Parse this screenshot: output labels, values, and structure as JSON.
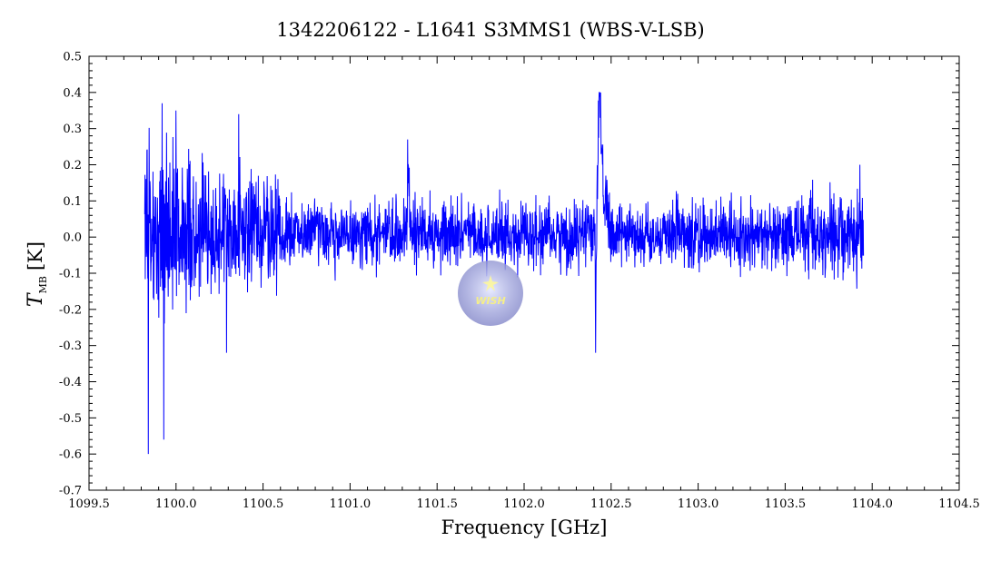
{
  "chart_data": {
    "type": "line",
    "title": "1342206122 - L1641 S3MMS1 (WBS-V-LSB)",
    "xlabel": "Frequency [GHz]",
    "ylabel_main": "T",
    "ylabel_sub": "MB",
    "ylabel_unit": "[K]",
    "xlim": [
      1099.5,
      1104.5
    ],
    "ylim": [
      -0.7,
      0.5
    ],
    "xticks": [
      1099.5,
      1100.0,
      1100.5,
      1101.0,
      1101.5,
      1102.0,
      1102.5,
      1103.0,
      1103.5,
      1104.0,
      1104.5
    ],
    "xtick_labels": [
      "1099.5",
      "1100.0",
      "1100.5",
      "1101.0",
      "1101.5",
      "1102.0",
      "1102.5",
      "1103.0",
      "1103.5",
      "1104.0",
      "1104.5"
    ],
    "yticks": [
      0.5,
      0.4,
      0.3,
      0.2,
      0.1,
      0.0,
      -0.1,
      -0.2,
      -0.3,
      -0.4,
      -0.5,
      -0.6,
      -0.7
    ],
    "ytick_labels": [
      "0.5",
      "0.4",
      "0.3",
      "0.2",
      "0.1",
      "0.0",
      "-0.1",
      "-0.2",
      "-0.3",
      "-0.4",
      "-0.5",
      "-0.6",
      "-0.7"
    ],
    "grid": false,
    "series": [
      {
        "color": "#0000ff",
        "x_range": [
          1099.82,
          1103.95
        ],
        "notes_visible_features": "noise spectrum; emission peak ~0.38 K near 1102.43 GHz; absorption dip ~-0.32 K near 1102.41 GHz; peak ~0.27 K near 1101.33 GHz; strong negative spikes to ~-0.6 K near 1099.84 GHz",
        "features": [
          {
            "x": 1099.84,
            "y": -0.6
          },
          {
            "x": 1099.93,
            "y": -0.56
          },
          {
            "x": 1099.92,
            "y": 0.37
          },
          {
            "x": 1100.0,
            "y": 0.35
          },
          {
            "x": 1100.29,
            "y": -0.32
          },
          {
            "x": 1100.36,
            "y": 0.34
          },
          {
            "x": 1101.33,
            "y": 0.27
          },
          {
            "x": 1102.41,
            "y": -0.32
          },
          {
            "x": 1102.43,
            "y": 0.38
          },
          {
            "x": 1103.93,
            "y": 0.2
          }
        ]
      }
    ]
  },
  "logo": {
    "text": "WISH",
    "glow_color": "#8c8fd6"
  }
}
